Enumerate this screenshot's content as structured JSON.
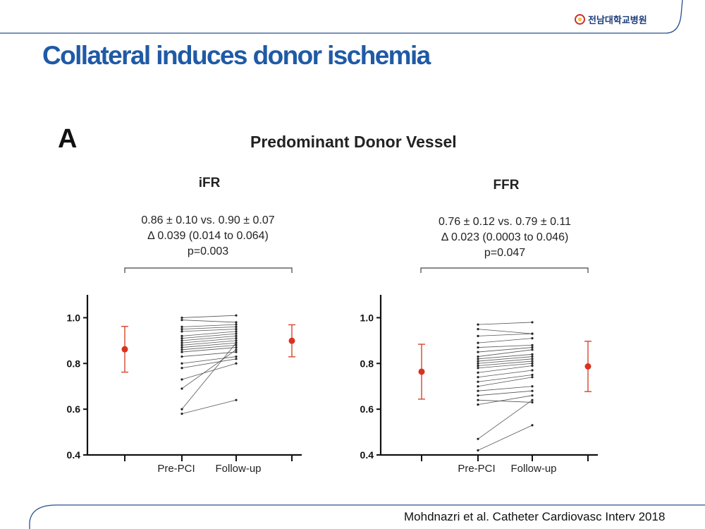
{
  "header": {
    "logo_text": "전남대학교병원",
    "title": "Collateral induces donor ischemia"
  },
  "figure": {
    "panel_letter": "A",
    "panel_title": "Predominant Donor Vessel"
  },
  "chart_data": [
    {
      "type": "scatter",
      "title": "iFR",
      "stats": [
        "0.86 ± 0.10 vs. 0.90 ± 0.07",
        "Δ 0.039 (0.014 to 0.064)",
        "p=0.003"
      ],
      "categories": [
        "Pre-PCI",
        "Follow-up"
      ],
      "yticks": [
        "1.0",
        "0.8",
        "0.6",
        "0.4"
      ],
      "ylim": [
        0.4,
        1.1
      ],
      "summary": [
        {
          "mean": 0.862,
          "low": 0.762,
          "high": 0.962
        },
        {
          "mean": 0.899,
          "low": 0.829,
          "high": 0.969
        }
      ],
      "pairs": [
        [
          1.0,
          1.01
        ],
        [
          0.99,
          0.98
        ],
        [
          0.96,
          0.97
        ],
        [
          0.95,
          0.96
        ],
        [
          0.94,
          0.95
        ],
        [
          0.92,
          0.94
        ],
        [
          0.91,
          0.93
        ],
        [
          0.9,
          0.92
        ],
        [
          0.89,
          0.91
        ],
        [
          0.88,
          0.9
        ],
        [
          0.87,
          0.89
        ],
        [
          0.86,
          0.88
        ],
        [
          0.85,
          0.87
        ],
        [
          0.83,
          0.85
        ],
        [
          0.8,
          0.83
        ],
        [
          0.78,
          0.82
        ],
        [
          0.73,
          0.8
        ],
        [
          0.69,
          0.86
        ],
        [
          0.6,
          0.89
        ],
        [
          0.58,
          0.64
        ]
      ]
    },
    {
      "type": "scatter",
      "title": "FFR",
      "stats": [
        "0.76 ±  0.12 vs. 0.79 ± 0.11",
        "Δ 0.023 (0.0003 to 0.046)",
        "p=0.047"
      ],
      "categories": [
        "Pre-PCI",
        "Follow-up"
      ],
      "yticks": [
        "1.0",
        "0.8",
        "0.6",
        "0.4"
      ],
      "ylim": [
        0.4,
        1.1
      ],
      "summary": [
        {
          "mean": 0.764,
          "low": 0.644,
          "high": 0.884
        },
        {
          "mean": 0.787,
          "low": 0.677,
          "high": 0.897
        }
      ],
      "pairs": [
        [
          0.97,
          0.98
        ],
        [
          0.95,
          0.93
        ],
        [
          0.92,
          0.93
        ],
        [
          0.89,
          0.91
        ],
        [
          0.87,
          0.88
        ],
        [
          0.85,
          0.87
        ],
        [
          0.83,
          0.86
        ],
        [
          0.82,
          0.84
        ],
        [
          0.81,
          0.83
        ],
        [
          0.8,
          0.82
        ],
        [
          0.79,
          0.81
        ],
        [
          0.78,
          0.8
        ],
        [
          0.76,
          0.79
        ],
        [
          0.74,
          0.77
        ],
        [
          0.72,
          0.75
        ],
        [
          0.7,
          0.74
        ],
        [
          0.68,
          0.7
        ],
        [
          0.66,
          0.68
        ],
        [
          0.64,
          0.63
        ],
        [
          0.62,
          0.66
        ],
        [
          0.47,
          0.64
        ],
        [
          0.42,
          0.53
        ]
      ]
    }
  ],
  "footer": {
    "citation": "Mohdnazri et al. Catheter Cardiovasc Interv 2018"
  }
}
